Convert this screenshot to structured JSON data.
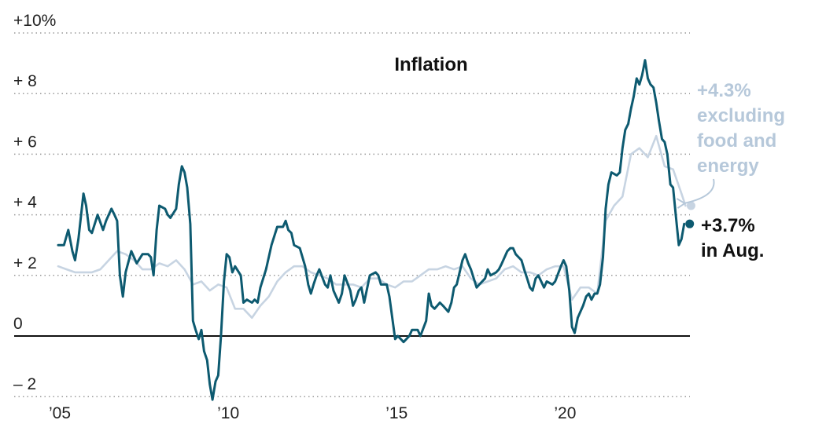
{
  "chart_data": {
    "type": "line",
    "title": "Inflation",
    "xlabel": "",
    "ylabel": "",
    "ylim": [
      -2.2,
      10
    ],
    "xlim": [
      2005.0,
      2023.75
    ],
    "y_ticks": [
      {
        "value": 10,
        "label": "+10%"
      },
      {
        "value": 8,
        "label": "+  8"
      },
      {
        "value": 6,
        "label": "+  6"
      },
      {
        "value": 4,
        "label": "+  4"
      },
      {
        "value": 2,
        "label": "+  2"
      },
      {
        "value": 0,
        "label": "0"
      },
      {
        "value": -2,
        "label": "–  2"
      }
    ],
    "x_ticks": [
      {
        "value": 2005,
        "label": "’05"
      },
      {
        "value": 2010,
        "label": "’10"
      },
      {
        "value": 2015,
        "label": "’15"
      },
      {
        "value": 2020,
        "label": "’20"
      }
    ],
    "grid": "dotted horizontal",
    "series": [
      {
        "key": "core",
        "color": "#c7d4e2",
        "points": [
          [
            2005.0,
            2.3
          ],
          [
            2005.25,
            2.2
          ],
          [
            2005.5,
            2.1
          ],
          [
            2005.75,
            2.1
          ],
          [
            2006.0,
            2.1
          ],
          [
            2006.25,
            2.2
          ],
          [
            2006.5,
            2.5
          ],
          [
            2006.75,
            2.8
          ],
          [
            2007.0,
            2.7
          ],
          [
            2007.25,
            2.5
          ],
          [
            2007.5,
            2.2
          ],
          [
            2007.75,
            2.2
          ],
          [
            2008.0,
            2.4
          ],
          [
            2008.25,
            2.3
          ],
          [
            2008.5,
            2.5
          ],
          [
            2008.75,
            2.2
          ],
          [
            2009.0,
            1.7
          ],
          [
            2009.25,
            1.8
          ],
          [
            2009.5,
            1.5
          ],
          [
            2009.75,
            1.7
          ],
          [
            2010.0,
            1.6
          ],
          [
            2010.25,
            0.9
          ],
          [
            2010.5,
            0.9
          ],
          [
            2010.75,
            0.6
          ],
          [
            2011.0,
            1.0
          ],
          [
            2011.25,
            1.3
          ],
          [
            2011.5,
            1.8
          ],
          [
            2011.75,
            2.1
          ],
          [
            2012.0,
            2.3
          ],
          [
            2012.25,
            2.3
          ],
          [
            2012.5,
            2.1
          ],
          [
            2012.75,
            2.0
          ],
          [
            2013.0,
            1.9
          ],
          [
            2013.25,
            1.7
          ],
          [
            2013.5,
            1.7
          ],
          [
            2013.75,
            1.7
          ],
          [
            2014.0,
            1.6
          ],
          [
            2014.25,
            1.9
          ],
          [
            2014.5,
            1.9
          ],
          [
            2014.75,
            1.7
          ],
          [
            2015.0,
            1.6
          ],
          [
            2015.25,
            1.8
          ],
          [
            2015.5,
            1.8
          ],
          [
            2015.75,
            2.0
          ],
          [
            2016.0,
            2.2
          ],
          [
            2016.25,
            2.2
          ],
          [
            2016.5,
            2.3
          ],
          [
            2016.75,
            2.2
          ],
          [
            2017.0,
            2.3
          ],
          [
            2017.25,
            1.9
          ],
          [
            2017.5,
            1.7
          ],
          [
            2017.75,
            1.8
          ],
          [
            2018.0,
            1.9
          ],
          [
            2018.25,
            2.2
          ],
          [
            2018.5,
            2.3
          ],
          [
            2018.75,
            2.1
          ],
          [
            2019.0,
            2.1
          ],
          [
            2019.25,
            2.0
          ],
          [
            2019.5,
            2.2
          ],
          [
            2019.75,
            2.3
          ],
          [
            2020.0,
            2.3
          ],
          [
            2020.25,
            1.2
          ],
          [
            2020.5,
            1.6
          ],
          [
            2020.75,
            1.6
          ],
          [
            2021.0,
            1.4
          ],
          [
            2021.25,
            3.8
          ],
          [
            2021.5,
            4.3
          ],
          [
            2021.75,
            4.6
          ],
          [
            2022.0,
            6.0
          ],
          [
            2022.25,
            6.2
          ],
          [
            2022.5,
            5.9
          ],
          [
            2022.75,
            6.6
          ],
          [
            2023.0,
            5.6
          ],
          [
            2023.25,
            5.5
          ],
          [
            2023.5,
            4.7
          ],
          [
            2023.62,
            4.3
          ]
        ]
      },
      {
        "key": "headline",
        "color": "#0d5a70",
        "points": [
          [
            2005.0,
            3.0
          ],
          [
            2005.17,
            3.0
          ],
          [
            2005.3,
            3.5
          ],
          [
            2005.42,
            2.8
          ],
          [
            2005.5,
            2.5
          ],
          [
            2005.6,
            3.2
          ],
          [
            2005.75,
            4.7
          ],
          [
            2005.83,
            4.3
          ],
          [
            2005.92,
            3.5
          ],
          [
            2006.0,
            3.4
          ],
          [
            2006.17,
            4.0
          ],
          [
            2006.33,
            3.5
          ],
          [
            2006.42,
            3.8
          ],
          [
            2006.58,
            4.2
          ],
          [
            2006.67,
            4.0
          ],
          [
            2006.75,
            3.8
          ],
          [
            2006.83,
            2.0
          ],
          [
            2006.92,
            1.3
          ],
          [
            2007.0,
            2.1
          ],
          [
            2007.17,
            2.8
          ],
          [
            2007.33,
            2.4
          ],
          [
            2007.5,
            2.7
          ],
          [
            2007.67,
            2.7
          ],
          [
            2007.75,
            2.6
          ],
          [
            2007.83,
            2.0
          ],
          [
            2007.92,
            3.5
          ],
          [
            2008.0,
            4.3
          ],
          [
            2008.17,
            4.2
          ],
          [
            2008.25,
            4.0
          ],
          [
            2008.33,
            3.9
          ],
          [
            2008.5,
            4.2
          ],
          [
            2008.58,
            5.0
          ],
          [
            2008.67,
            5.6
          ],
          [
            2008.75,
            5.4
          ],
          [
            2008.83,
            4.9
          ],
          [
            2008.92,
            3.7
          ],
          [
            2009.0,
            0.5
          ],
          [
            2009.08,
            0.2
          ],
          [
            2009.17,
            -0.1
          ],
          [
            2009.25,
            0.2
          ],
          [
            2009.33,
            -0.5
          ],
          [
            2009.42,
            -0.8
          ],
          [
            2009.5,
            -1.6
          ],
          [
            2009.58,
            -2.1
          ],
          [
            2009.67,
            -1.5
          ],
          [
            2009.75,
            -1.3
          ],
          [
            2009.83,
            0.0
          ],
          [
            2009.92,
            1.8
          ],
          [
            2010.0,
            2.7
          ],
          [
            2010.08,
            2.6
          ],
          [
            2010.17,
            2.1
          ],
          [
            2010.25,
            2.3
          ],
          [
            2010.42,
            2.0
          ],
          [
            2010.5,
            1.1
          ],
          [
            2010.6,
            1.2
          ],
          [
            2010.75,
            1.1
          ],
          [
            2010.83,
            1.2
          ],
          [
            2010.92,
            1.1
          ],
          [
            2011.0,
            1.6
          ],
          [
            2011.17,
            2.2
          ],
          [
            2011.33,
            3.0
          ],
          [
            2011.5,
            3.6
          ],
          [
            2011.67,
            3.6
          ],
          [
            2011.75,
            3.8
          ],
          [
            2011.83,
            3.5
          ],
          [
            2011.92,
            3.4
          ],
          [
            2012.0,
            3.0
          ],
          [
            2012.17,
            2.9
          ],
          [
            2012.33,
            2.3
          ],
          [
            2012.42,
            1.7
          ],
          [
            2012.5,
            1.4
          ],
          [
            2012.58,
            1.7
          ],
          [
            2012.67,
            2.0
          ],
          [
            2012.75,
            2.2
          ],
          [
            2012.92,
            1.7
          ],
          [
            2013.0,
            1.6
          ],
          [
            2013.08,
            2.0
          ],
          [
            2013.17,
            1.5
          ],
          [
            2013.33,
            1.1
          ],
          [
            2013.42,
            1.4
          ],
          [
            2013.5,
            2.0
          ],
          [
            2013.67,
            1.5
          ],
          [
            2013.75,
            1.0
          ],
          [
            2013.83,
            1.2
          ],
          [
            2013.92,
            1.5
          ],
          [
            2014.0,
            1.6
          ],
          [
            2014.08,
            1.1
          ],
          [
            2014.25,
            2.0
          ],
          [
            2014.42,
            2.1
          ],
          [
            2014.5,
            2.0
          ],
          [
            2014.58,
            1.7
          ],
          [
            2014.75,
            1.7
          ],
          [
            2014.83,
            1.3
          ],
          [
            2015.0,
            -0.1
          ],
          [
            2015.08,
            0.0
          ],
          [
            2015.17,
            -0.1
          ],
          [
            2015.25,
            -0.2
          ],
          [
            2015.42,
            0.0
          ],
          [
            2015.5,
            0.2
          ],
          [
            2015.67,
            0.2
          ],
          [
            2015.75,
            0.0
          ],
          [
            2015.92,
            0.5
          ],
          [
            2016.0,
            1.4
          ],
          [
            2016.08,
            1.0
          ],
          [
            2016.17,
            0.9
          ],
          [
            2016.33,
            1.1
          ],
          [
            2016.42,
            1.0
          ],
          [
            2016.58,
            0.8
          ],
          [
            2016.67,
            1.1
          ],
          [
            2016.75,
            1.6
          ],
          [
            2016.83,
            1.7
          ],
          [
            2017.0,
            2.5
          ],
          [
            2017.08,
            2.7
          ],
          [
            2017.17,
            2.4
          ],
          [
            2017.25,
            2.2
          ],
          [
            2017.42,
            1.6
          ],
          [
            2017.5,
            1.7
          ],
          [
            2017.67,
            1.9
          ],
          [
            2017.75,
            2.2
          ],
          [
            2017.83,
            2.0
          ],
          [
            2018.0,
            2.1
          ],
          [
            2018.08,
            2.2
          ],
          [
            2018.17,
            2.4
          ],
          [
            2018.33,
            2.8
          ],
          [
            2018.42,
            2.9
          ],
          [
            2018.5,
            2.9
          ],
          [
            2018.58,
            2.7
          ],
          [
            2018.75,
            2.5
          ],
          [
            2018.83,
            2.2
          ],
          [
            2018.92,
            1.9
          ],
          [
            2019.0,
            1.6
          ],
          [
            2019.08,
            1.5
          ],
          [
            2019.17,
            1.9
          ],
          [
            2019.25,
            2.0
          ],
          [
            2019.42,
            1.6
          ],
          [
            2019.5,
            1.8
          ],
          [
            2019.67,
            1.7
          ],
          [
            2019.75,
            1.8
          ],
          [
            2019.92,
            2.3
          ],
          [
            2020.0,
            2.5
          ],
          [
            2020.08,
            2.3
          ],
          [
            2020.17,
            1.5
          ],
          [
            2020.25,
            0.3
          ],
          [
            2020.33,
            0.1
          ],
          [
            2020.42,
            0.6
          ],
          [
            2020.58,
            1.0
          ],
          [
            2020.67,
            1.3
          ],
          [
            2020.75,
            1.4
          ],
          [
            2020.83,
            1.2
          ],
          [
            2020.92,
            1.4
          ],
          [
            2021.0,
            1.4
          ],
          [
            2021.08,
            1.7
          ],
          [
            2021.17,
            2.6
          ],
          [
            2021.25,
            4.2
          ],
          [
            2021.33,
            5.0
          ],
          [
            2021.42,
            5.4
          ],
          [
            2021.58,
            5.3
          ],
          [
            2021.67,
            5.4
          ],
          [
            2021.75,
            6.2
          ],
          [
            2021.83,
            6.8
          ],
          [
            2021.92,
            7.0
          ],
          [
            2022.0,
            7.5
          ],
          [
            2022.08,
            7.9
          ],
          [
            2022.17,
            8.5
          ],
          [
            2022.25,
            8.3
          ],
          [
            2022.33,
            8.6
          ],
          [
            2022.42,
            9.1
          ],
          [
            2022.5,
            8.5
          ],
          [
            2022.58,
            8.3
          ],
          [
            2022.67,
            8.2
          ],
          [
            2022.75,
            7.7
          ],
          [
            2022.83,
            7.1
          ],
          [
            2022.92,
            6.5
          ],
          [
            2023.0,
            6.4
          ],
          [
            2023.08,
            6.0
          ],
          [
            2023.17,
            5.0
          ],
          [
            2023.25,
            4.9
          ],
          [
            2023.33,
            4.0
          ],
          [
            2023.42,
            3.0
          ],
          [
            2023.5,
            3.2
          ],
          [
            2023.58,
            3.7
          ]
        ]
      }
    ],
    "annotations": [
      {
        "key": "core",
        "lines": [
          "+4.3%",
          "excluding",
          "food and",
          "energy"
        ],
        "color": "#b6c8da"
      },
      {
        "key": "headline",
        "lines": [
          "+3.7%",
          "in Aug."
        ],
        "color": "#111111"
      }
    ]
  }
}
